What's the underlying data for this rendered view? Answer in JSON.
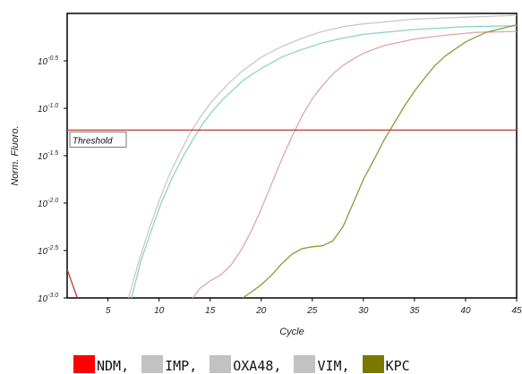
{
  "chart_data": {
    "type": "line",
    "title": "",
    "xlabel": "Cycle",
    "ylabel": "Norm. Fluoro.",
    "x_ticks": [
      5,
      10,
      15,
      20,
      25,
      30,
      35,
      40,
      45
    ],
    "xlim": [
      1,
      45
    ],
    "y_scale": "log10",
    "y_ticks": [
      {
        "exp": -3.0,
        "label_base": "10",
        "label_exp": "-3.0"
      },
      {
        "exp": -2.5,
        "label_base": "10",
        "label_exp": "-2.5"
      },
      {
        "exp": -2.0,
        "label_base": "10",
        "label_exp": "-2.0"
      },
      {
        "exp": -1.5,
        "label_base": "10",
        "label_exp": "-1.5"
      },
      {
        "exp": -1.0,
        "label_base": "10",
        "label_exp": "-1.0"
      },
      {
        "exp": -0.5,
        "label_base": "10",
        "label_exp": "-0.5"
      }
    ],
    "ylim_exp": [
      -3.0,
      -0.0
    ],
    "threshold": {
      "label": "Threshold",
      "log10_value": -1.23,
      "color": "#c0392b"
    },
    "series": [
      {
        "name": "NDM",
        "color": "#c0392b",
        "points": [
          [
            1,
            -2.7
          ],
          [
            2,
            -3.0
          ]
        ]
      },
      {
        "name": "IMP",
        "color": "#c9c9c9",
        "points": [
          [
            7,
            -3.0
          ],
          [
            8,
            -2.62
          ],
          [
            9,
            -2.28
          ],
          [
            10,
            -1.98
          ],
          [
            11,
            -1.7
          ],
          [
            12,
            -1.48
          ],
          [
            13,
            -1.27
          ],
          [
            14,
            -1.1
          ],
          [
            15,
            -0.95
          ],
          [
            16,
            -0.83
          ],
          [
            17,
            -0.72
          ],
          [
            18,
            -0.62
          ],
          [
            19,
            -0.54
          ],
          [
            20,
            -0.46
          ],
          [
            22,
            -0.35
          ],
          [
            24,
            -0.26
          ],
          [
            26,
            -0.19
          ],
          [
            28,
            -0.14
          ],
          [
            30,
            -0.11
          ],
          [
            35,
            -0.06
          ],
          [
            40,
            -0.04
          ],
          [
            45,
            -0.02
          ]
        ]
      },
      {
        "name": "OXA48",
        "color": "#8fd3c8",
        "points": [
          [
            7.3,
            -3.0
          ],
          [
            8.2,
            -2.62
          ],
          [
            9.2,
            -2.3
          ],
          [
            10.2,
            -2.0
          ],
          [
            11.2,
            -1.75
          ],
          [
            12.3,
            -1.52
          ],
          [
            13.3,
            -1.33
          ],
          [
            14.3,
            -1.16
          ],
          [
            15.3,
            -1.02
          ],
          [
            16.3,
            -0.9
          ],
          [
            17.3,
            -0.8
          ],
          [
            18.3,
            -0.7
          ],
          [
            20,
            -0.58
          ],
          [
            22,
            -0.46
          ],
          [
            24,
            -0.38
          ],
          [
            26,
            -0.31
          ],
          [
            28,
            -0.26
          ],
          [
            30,
            -0.22
          ],
          [
            35,
            -0.17
          ],
          [
            40,
            -0.14
          ],
          [
            45,
            -0.13
          ]
        ]
      },
      {
        "name": "VIM",
        "color": "#e0a6ad",
        "points": [
          [
            13.3,
            -3.0
          ],
          [
            14,
            -2.9
          ],
          [
            15,
            -2.82
          ],
          [
            16,
            -2.76
          ],
          [
            17,
            -2.66
          ],
          [
            18,
            -2.5
          ],
          [
            19,
            -2.3
          ],
          [
            20,
            -2.06
          ],
          [
            21,
            -1.8
          ],
          [
            22,
            -1.54
          ],
          [
            23,
            -1.3
          ],
          [
            24,
            -1.08
          ],
          [
            25,
            -0.9
          ],
          [
            26,
            -0.76
          ],
          [
            27,
            -0.64
          ],
          [
            28,
            -0.55
          ],
          [
            29,
            -0.48
          ],
          [
            30,
            -0.42
          ],
          [
            32,
            -0.34
          ],
          [
            35,
            -0.27
          ],
          [
            38,
            -0.23
          ],
          [
            41,
            -0.2
          ],
          [
            45,
            -0.19
          ]
        ]
      },
      {
        "name": "KPC",
        "color": "#8a9a3a",
        "points": [
          [
            18.2,
            -3.0
          ],
          [
            19,
            -2.94
          ],
          [
            20,
            -2.86
          ],
          [
            21,
            -2.76
          ],
          [
            22,
            -2.64
          ],
          [
            23,
            -2.54
          ],
          [
            24,
            -2.48
          ],
          [
            25,
            -2.46
          ],
          [
            26,
            -2.45
          ],
          [
            27,
            -2.4
          ],
          [
            28,
            -2.25
          ],
          [
            29,
            -2.0
          ],
          [
            30,
            -1.75
          ],
          [
            31,
            -1.55
          ],
          [
            32,
            -1.34
          ],
          [
            33,
            -1.16
          ],
          [
            34,
            -0.98
          ],
          [
            35,
            -0.82
          ],
          [
            36,
            -0.68
          ],
          [
            37,
            -0.55
          ],
          [
            38,
            -0.45
          ],
          [
            40,
            -0.3
          ],
          [
            42,
            -0.2
          ],
          [
            45,
            -0.12
          ]
        ]
      }
    ],
    "grid": false,
    "legend_position": "bottom"
  },
  "legend": [
    {
      "label": "NDM,",
      "color": "#ff0000"
    },
    {
      "label": "IMP,",
      "color": "#c2c2c2"
    },
    {
      "label": "OXA48,",
      "color": "#c2c2c2"
    },
    {
      "label": "VIM,",
      "color": "#c2c2c2"
    },
    {
      "label": "KPC",
      "color": "#7a7800"
    }
  ]
}
